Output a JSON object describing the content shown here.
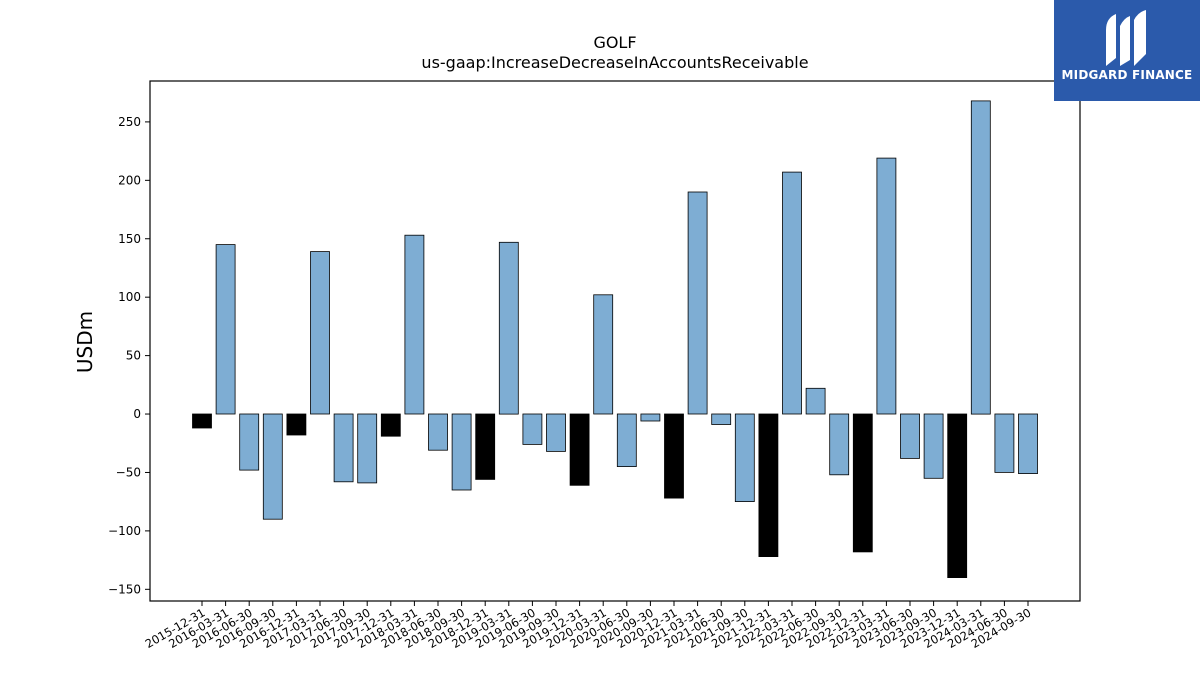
{
  "chart_data": {
    "type": "bar",
    "title": "GOLF",
    "subtitle": "us-gaap:IncreaseDecreaseInAccountsReceivable",
    "ylabel": "USDm",
    "xlabel": "",
    "ylim": [
      -160,
      285
    ],
    "yticks": [
      -150,
      -100,
      -50,
      0,
      50,
      100,
      150,
      200,
      250
    ],
    "grid": false,
    "colors": {
      "default": "#7eadd3",
      "q4": "#000000",
      "edge": "#000000"
    },
    "categories": [
      "2015-12-31",
      "2016-03-31",
      "2016-06-30",
      "2016-09-30",
      "2016-12-31",
      "2017-03-31",
      "2017-06-30",
      "2017-09-30",
      "2017-12-31",
      "2018-03-31",
      "2018-06-30",
      "2018-09-30",
      "2018-12-31",
      "2019-03-31",
      "2019-06-30",
      "2019-09-30",
      "2019-12-31",
      "2020-03-31",
      "2020-06-30",
      "2020-09-30",
      "2020-12-31",
      "2021-03-31",
      "2021-06-30",
      "2021-09-30",
      "2021-12-31",
      "2022-03-31",
      "2022-06-30",
      "2022-09-30",
      "2022-12-31",
      "2023-03-31",
      "2023-06-30",
      "2023-09-30",
      "2023-12-31",
      "2024-03-31",
      "2024-06-30",
      "2024-09-30"
    ],
    "values": [
      -12,
      145,
      -48,
      -90,
      -18,
      139,
      -58,
      -59,
      -19,
      153,
      -31,
      -65,
      -56,
      147,
      -26,
      -32,
      -61,
      102,
      -45,
      -6,
      -72,
      190,
      -9,
      -75,
      -122,
      207,
      22,
      -52,
      -118,
      219,
      -38,
      -55,
      -140,
      268,
      -50,
      -51
    ]
  },
  "logo": {
    "text": "MIDGARD FINANCE",
    "icon": "midgard-logo-icon"
  }
}
